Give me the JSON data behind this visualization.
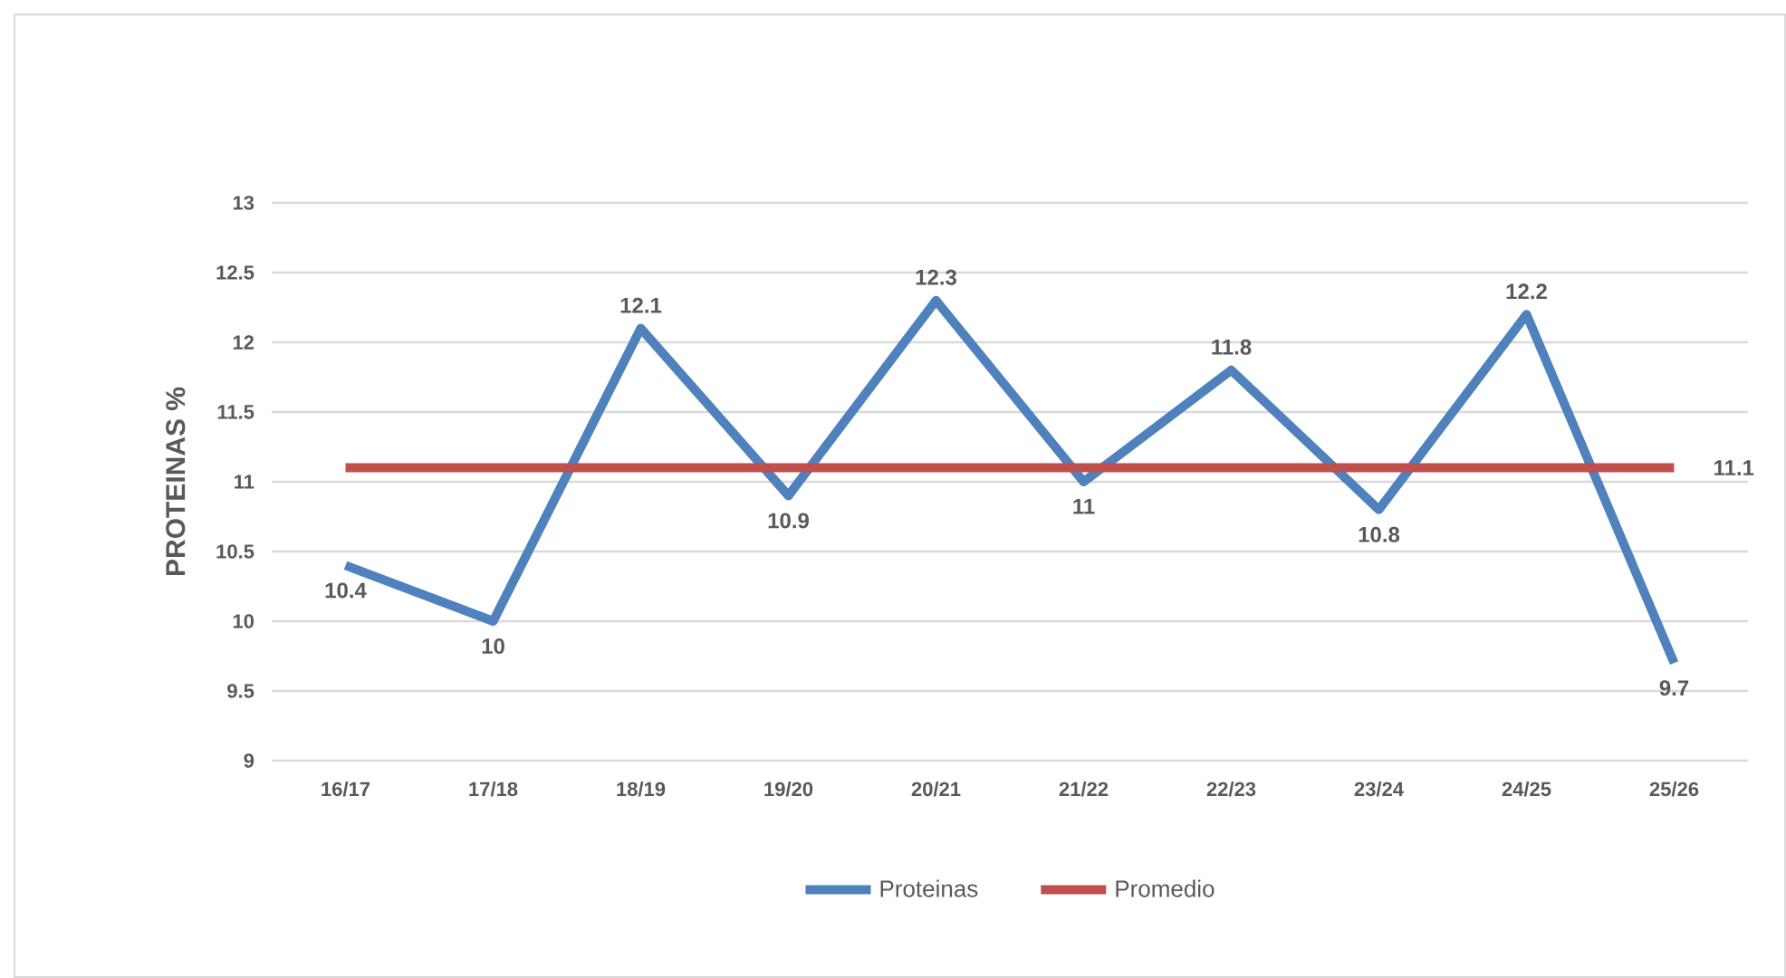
{
  "chart_data": {
    "type": "line",
    "ylabel": "PROTEINAS %",
    "categories": [
      "16/17",
      "17/18",
      "18/19",
      "19/20",
      "20/21",
      "21/22",
      "22/23",
      "23/24",
      "24/25",
      "25/26"
    ],
    "series": [
      {
        "name": "Proteinas",
        "color": "#4f81bd",
        "values": [
          10.4,
          10,
          12.1,
          10.9,
          12.3,
          11,
          11.8,
          10.8,
          12.2,
          9.7
        ],
        "value_labels": [
          "10.4",
          "10",
          "12.1",
          "10.9",
          "12.3",
          "11",
          "11.8",
          "10.8",
          "12.2",
          "9.7"
        ]
      },
      {
        "name": "Promedio",
        "color": "#c0504d",
        "values": [
          11.1,
          11.1,
          11.1,
          11.1,
          11.1,
          11.1,
          11.1,
          11.1,
          11.1,
          11.1
        ],
        "value_labels": [
          null,
          null,
          null,
          null,
          null,
          null,
          null,
          null,
          null,
          "11.1"
        ]
      }
    ],
    "ylim": [
      9,
      13
    ],
    "yticks": [
      9,
      9.5,
      10,
      10.5,
      11,
      11.5,
      12,
      12.5,
      13
    ],
    "grid": "y",
    "legend": "bottom"
  }
}
